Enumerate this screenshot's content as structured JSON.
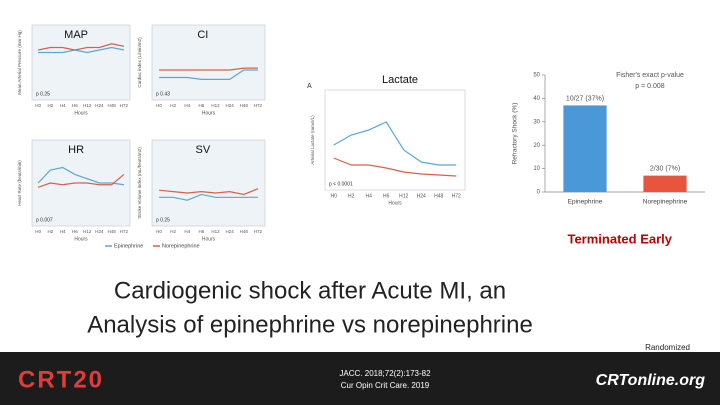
{
  "slide": {
    "title_line1": "Cardiogenic shock after Acute MI, an",
    "title_line2": "Analysis of epinephrine vs norepinephrine",
    "status": "Terminated Early",
    "design": "Randomized",
    "reference1": "JACC. 2018;72(2):173-82",
    "reference2": "Cur Opin Crit Care. 2019",
    "logo_left": "CRT20",
    "logo_right": "CRTonline.org"
  },
  "chart_data": [
    {
      "type": "line",
      "title": "MAP",
      "annotation": "p 0.25",
      "x_label": "Hours",
      "y_label": "Mean Arterial Pressure (mm Hg)",
      "categories": [
        "H0",
        "H2",
        "H4",
        "H6",
        "H12",
        "H24",
        "H48",
        "H72"
      ],
      "ylim": [
        30,
        90
      ],
      "series": [
        {
          "name": "Epinephrine",
          "color": "#5aa7d6",
          "values": [
            68,
            68,
            68,
            70,
            68,
            70,
            72,
            70
          ]
        },
        {
          "name": "Norepinephrine",
          "color": "#d9604a",
          "values": [
            70,
            72,
            72,
            70,
            72,
            72,
            75,
            73
          ]
        }
      ]
    },
    {
      "type": "line",
      "title": "CI",
      "annotation": "p 0.43",
      "x_label": "Hours",
      "y_label": "Cardiac index (L/min/m2)",
      "categories": [
        "H0",
        "H2",
        "H4",
        "H6",
        "H12",
        "H24",
        "H48",
        "H72"
      ],
      "ylim": [
        1,
        5
      ],
      "series": [
        {
          "color": "#5aa7d6",
          "values": [
            2.2,
            2.2,
            2.2,
            2.1,
            2.1,
            2.1,
            2.6,
            2.6
          ]
        },
        {
          "color": "#d9604a",
          "values": [
            2.6,
            2.6,
            2.6,
            2.6,
            2.6,
            2.6,
            2.7,
            2.7
          ]
        }
      ]
    },
    {
      "type": "line",
      "title": "HR",
      "annotation": "p 0.007",
      "x_label": "Hours",
      "y_label": "Heart Rate (beats/min)",
      "categories": [
        "H0",
        "H2",
        "H4",
        "H6",
        "H12",
        "H24",
        "H48",
        "H72"
      ],
      "ylim": [
        50,
        150
      ],
      "series": [
        {
          "color": "#5aa7d6",
          "values": [
            100,
            115,
            118,
            110,
            105,
            100,
            100,
            98
          ]
        },
        {
          "color": "#d9604a",
          "values": [
            95,
            100,
            98,
            100,
            100,
            98,
            98,
            110
          ]
        }
      ]
    },
    {
      "type": "line",
      "title": "SV",
      "annotation": "p 0.25",
      "x_label": "Hours",
      "y_label": "Stroke Volume index (mL/beats/m2)",
      "categories": [
        "H0",
        "H2",
        "H4",
        "H6",
        "H12",
        "H24",
        "H48",
        "H72"
      ],
      "ylim": [
        10,
        70
      ],
      "series": [
        {
          "color": "#5aa7d6",
          "values": [
            30,
            30,
            28,
            32,
            30,
            30,
            30,
            30
          ]
        },
        {
          "color": "#d9604a",
          "values": [
            35,
            34,
            33,
            34,
            33,
            34,
            32,
            36
          ]
        }
      ]
    },
    {
      "type": "line",
      "title": "Lactate",
      "panel": "A",
      "annotation": "p < 0.0001",
      "x_label": "Hours",
      "y_label": "Arterial Lactate (mmol/L)",
      "categories": [
        "H0",
        "H2",
        "H4",
        "H6",
        "H12",
        "H24",
        "H48",
        "H72"
      ],
      "ylim": [
        0,
        10
      ],
      "series": [
        {
          "color": "#5aa7d6",
          "values": [
            4.5,
            5.5,
            6,
            6.8,
            4,
            2.8,
            2.5,
            2.5
          ]
        },
        {
          "color": "#d9604a",
          "values": [
            3.2,
            2.5,
            2.5,
            2.2,
            1.8,
            1.6,
            1.5,
            1.4
          ]
        }
      ]
    },
    {
      "type": "bar",
      "y_label": "Refractory Shock (%)",
      "annotation": "Fisher's exact p-value",
      "annotation2": "p = 0.008",
      "categories": [
        "Epinephrine",
        "Norepinephrine"
      ],
      "values": [
        37,
        7
      ],
      "value_labels": [
        "10/27 (37%)",
        "2/30 (7%)"
      ],
      "colors": [
        "#4a98d8",
        "#e8553e"
      ],
      "ylim": [
        0,
        50
      ],
      "yticks": [
        0,
        10,
        20,
        30,
        40,
        50
      ]
    }
  ]
}
